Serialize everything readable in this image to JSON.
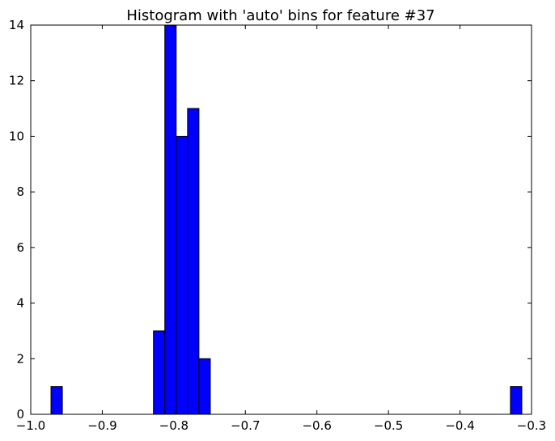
{
  "chart_data": {
    "type": "bar",
    "title": "Histogram with 'auto' bins for feature #37",
    "xlabel": "",
    "ylabel": "",
    "xlim": [
      -1.0,
      -0.3
    ],
    "ylim": [
      0,
      14
    ],
    "grid": false,
    "bar_color": "#0000ff",
    "edge_color": "#000000",
    "x_ticks": [
      -1.0,
      -0.9,
      -0.8,
      -0.7,
      -0.6,
      -0.5,
      -0.4,
      -0.3
    ],
    "x_tick_labels": [
      "−1.0",
      "−0.9",
      "−0.8",
      "−0.7",
      "−0.6",
      "−0.5",
      "−0.4",
      "−0.3"
    ],
    "y_ticks": [
      0,
      2,
      4,
      6,
      8,
      10,
      12,
      14
    ],
    "y_tick_labels": [
      "0",
      "2",
      "4",
      "6",
      "8",
      "10",
      "12",
      "14"
    ],
    "bins": [
      {
        "left": -0.9717,
        "right": -0.9558,
        "count": 1
      },
      {
        "left": -0.8285,
        "right": -0.8126,
        "count": 3
      },
      {
        "left": -0.8126,
        "right": -0.7967,
        "count": 14
      },
      {
        "left": -0.7967,
        "right": -0.7808,
        "count": 10
      },
      {
        "left": -0.7808,
        "right": -0.7649,
        "count": 11
      },
      {
        "left": -0.7649,
        "right": -0.749,
        "count": 2
      },
      {
        "left": -0.3295,
        "right": -0.3136,
        "count": 1
      }
    ]
  }
}
